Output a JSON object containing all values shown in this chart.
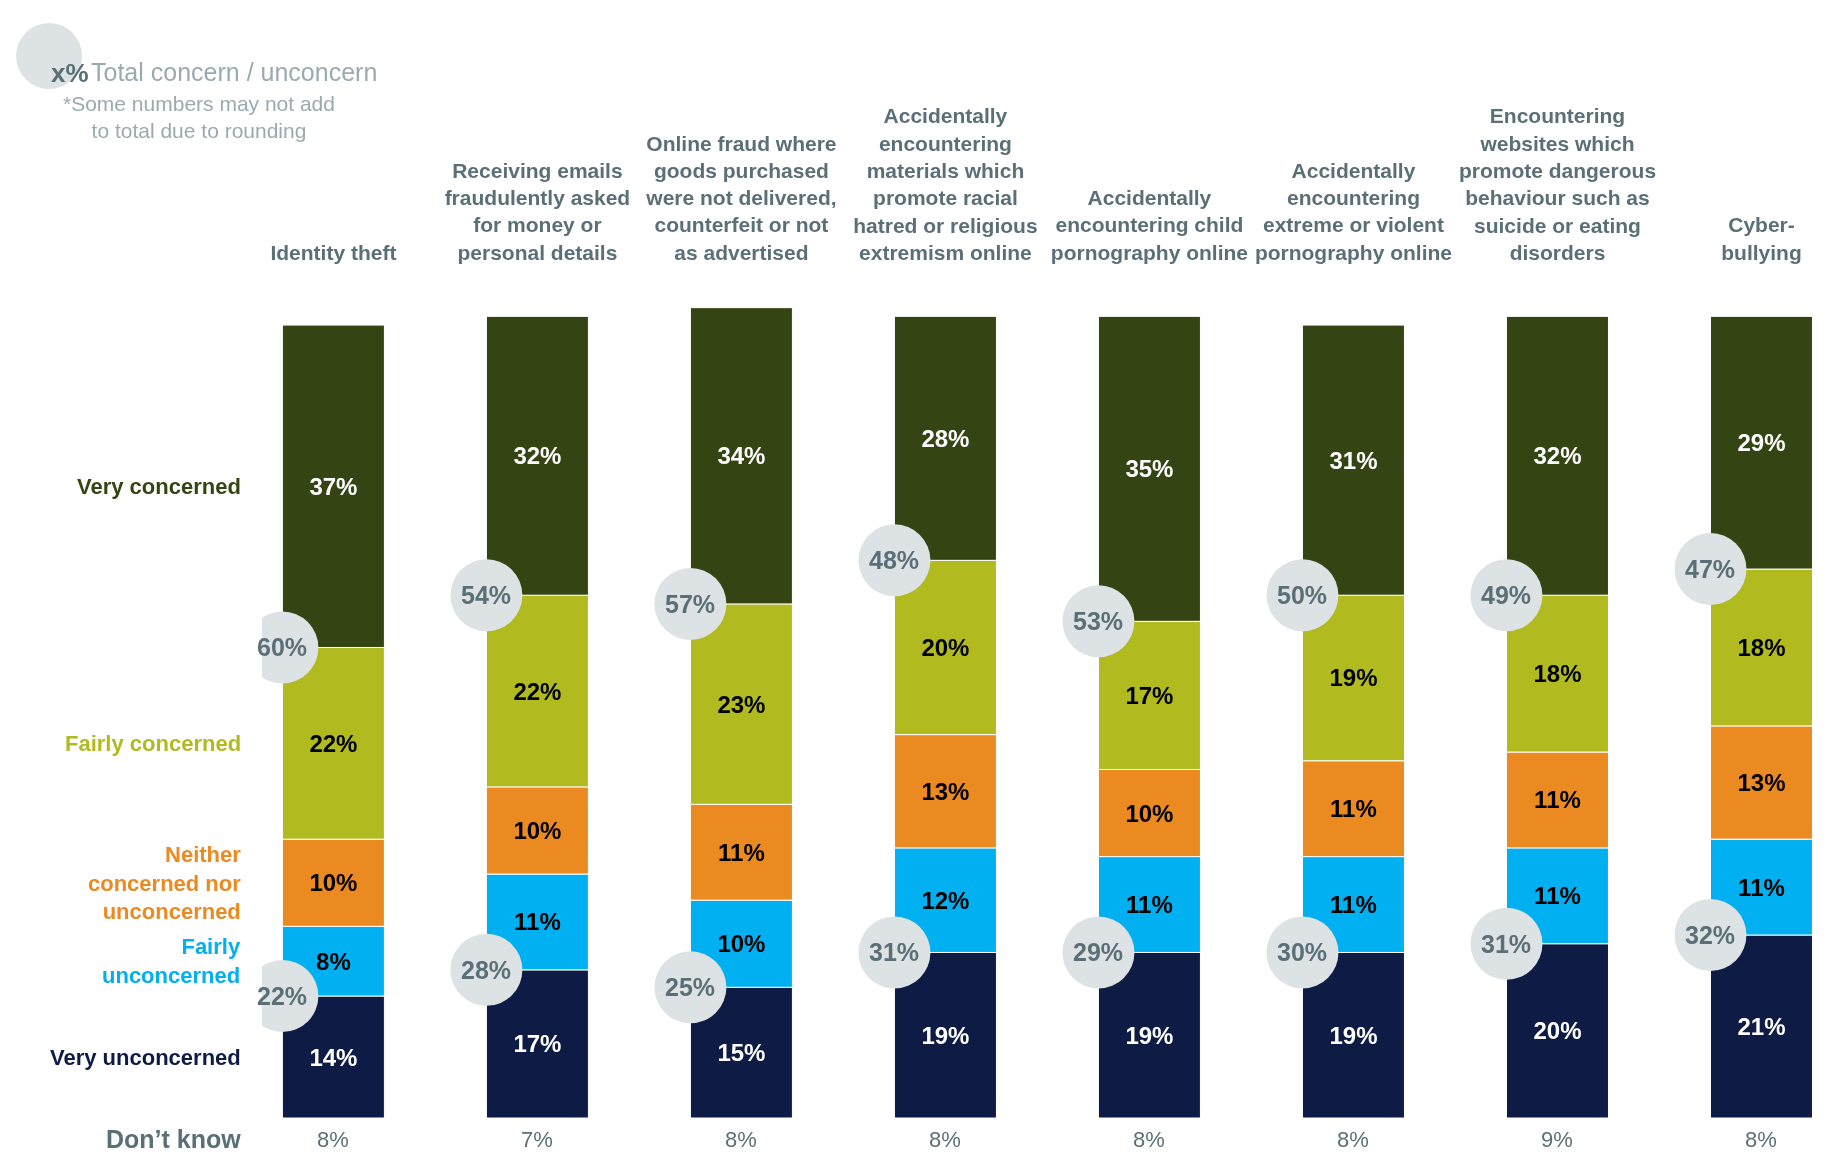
{
  "chart_data": {
    "type": "bar",
    "stacked": true,
    "categories": [
      "Identity theft",
      "Receiving emails fraudulently asked for money or personal details",
      "Online fraud where goods purchased were not delivered, counterfeit or not as advertised",
      "Accidentally encountering materials which promote racial hatred or religious extremism online",
      "Accidentally encountering child pornography online",
      "Accidentally encountering extreme or violent pornography online",
      "Encountering websites which promote dangerous behaviour such as suicide or eating disorders",
      "Cyber-bullying"
    ],
    "series": [
      {
        "name": "Very unconcerned",
        "color": "#0e1b45",
        "values": [
          14,
          17,
          15,
          19,
          19,
          19,
          20,
          21
        ],
        "value_labels": [
          "14%",
          "17%",
          "15%",
          "19%",
          "19%",
          "19%",
          "20%",
          "21%"
        ]
      },
      {
        "name": "Fairly unconcerned",
        "color": "#00b0f0",
        "values": [
          8,
          11,
          10,
          12,
          11,
          11,
          11,
          11
        ],
        "value_labels": [
          "8%",
          "11%",
          "10%",
          "12%",
          "11%",
          "11%",
          "11%",
          "11%"
        ]
      },
      {
        "name": "Neither concerned nor unconcerned",
        "color": "#ec8a22",
        "values": [
          10,
          10,
          11,
          13,
          10,
          11,
          11,
          13
        ],
        "value_labels": [
          "10%",
          "10%",
          "11%",
          "13%",
          "10%",
          "11%",
          "11%",
          "13%"
        ]
      },
      {
        "name": "Fairly concerned",
        "color": "#b1bb20",
        "values": [
          22,
          22,
          23,
          20,
          17,
          19,
          18,
          18
        ],
        "value_labels": [
          "22%",
          "22%",
          "23%",
          "20%",
          "17%",
          "19%",
          "18%",
          "18%"
        ]
      },
      {
        "name": "Very concerned",
        "color": "#354413",
        "values": [
          37,
          32,
          34,
          28,
          35,
          31,
          32,
          29
        ],
        "value_labels": [
          "37%",
          "32%",
          "34%",
          "28%",
          "35%",
          "31%",
          "32%",
          "29%"
        ]
      }
    ],
    "annotations": [
      "60%",
      "22%",
      "54%",
      "28%",
      "57%",
      "25%",
      "48%",
      "31%",
      "53%",
      "29%",
      "50%",
      "30%",
      "49%",
      "31%",
      "47%",
      "32%",
      "x%",
      "Total concern / unconcern",
      "*Some numbers may not add to total due to rounding",
      "Don’t know",
      "8%",
      "7%",
      "8%",
      "8%",
      "8%",
      "8%",
      "9%",
      "8%"
    ]
  }
}
